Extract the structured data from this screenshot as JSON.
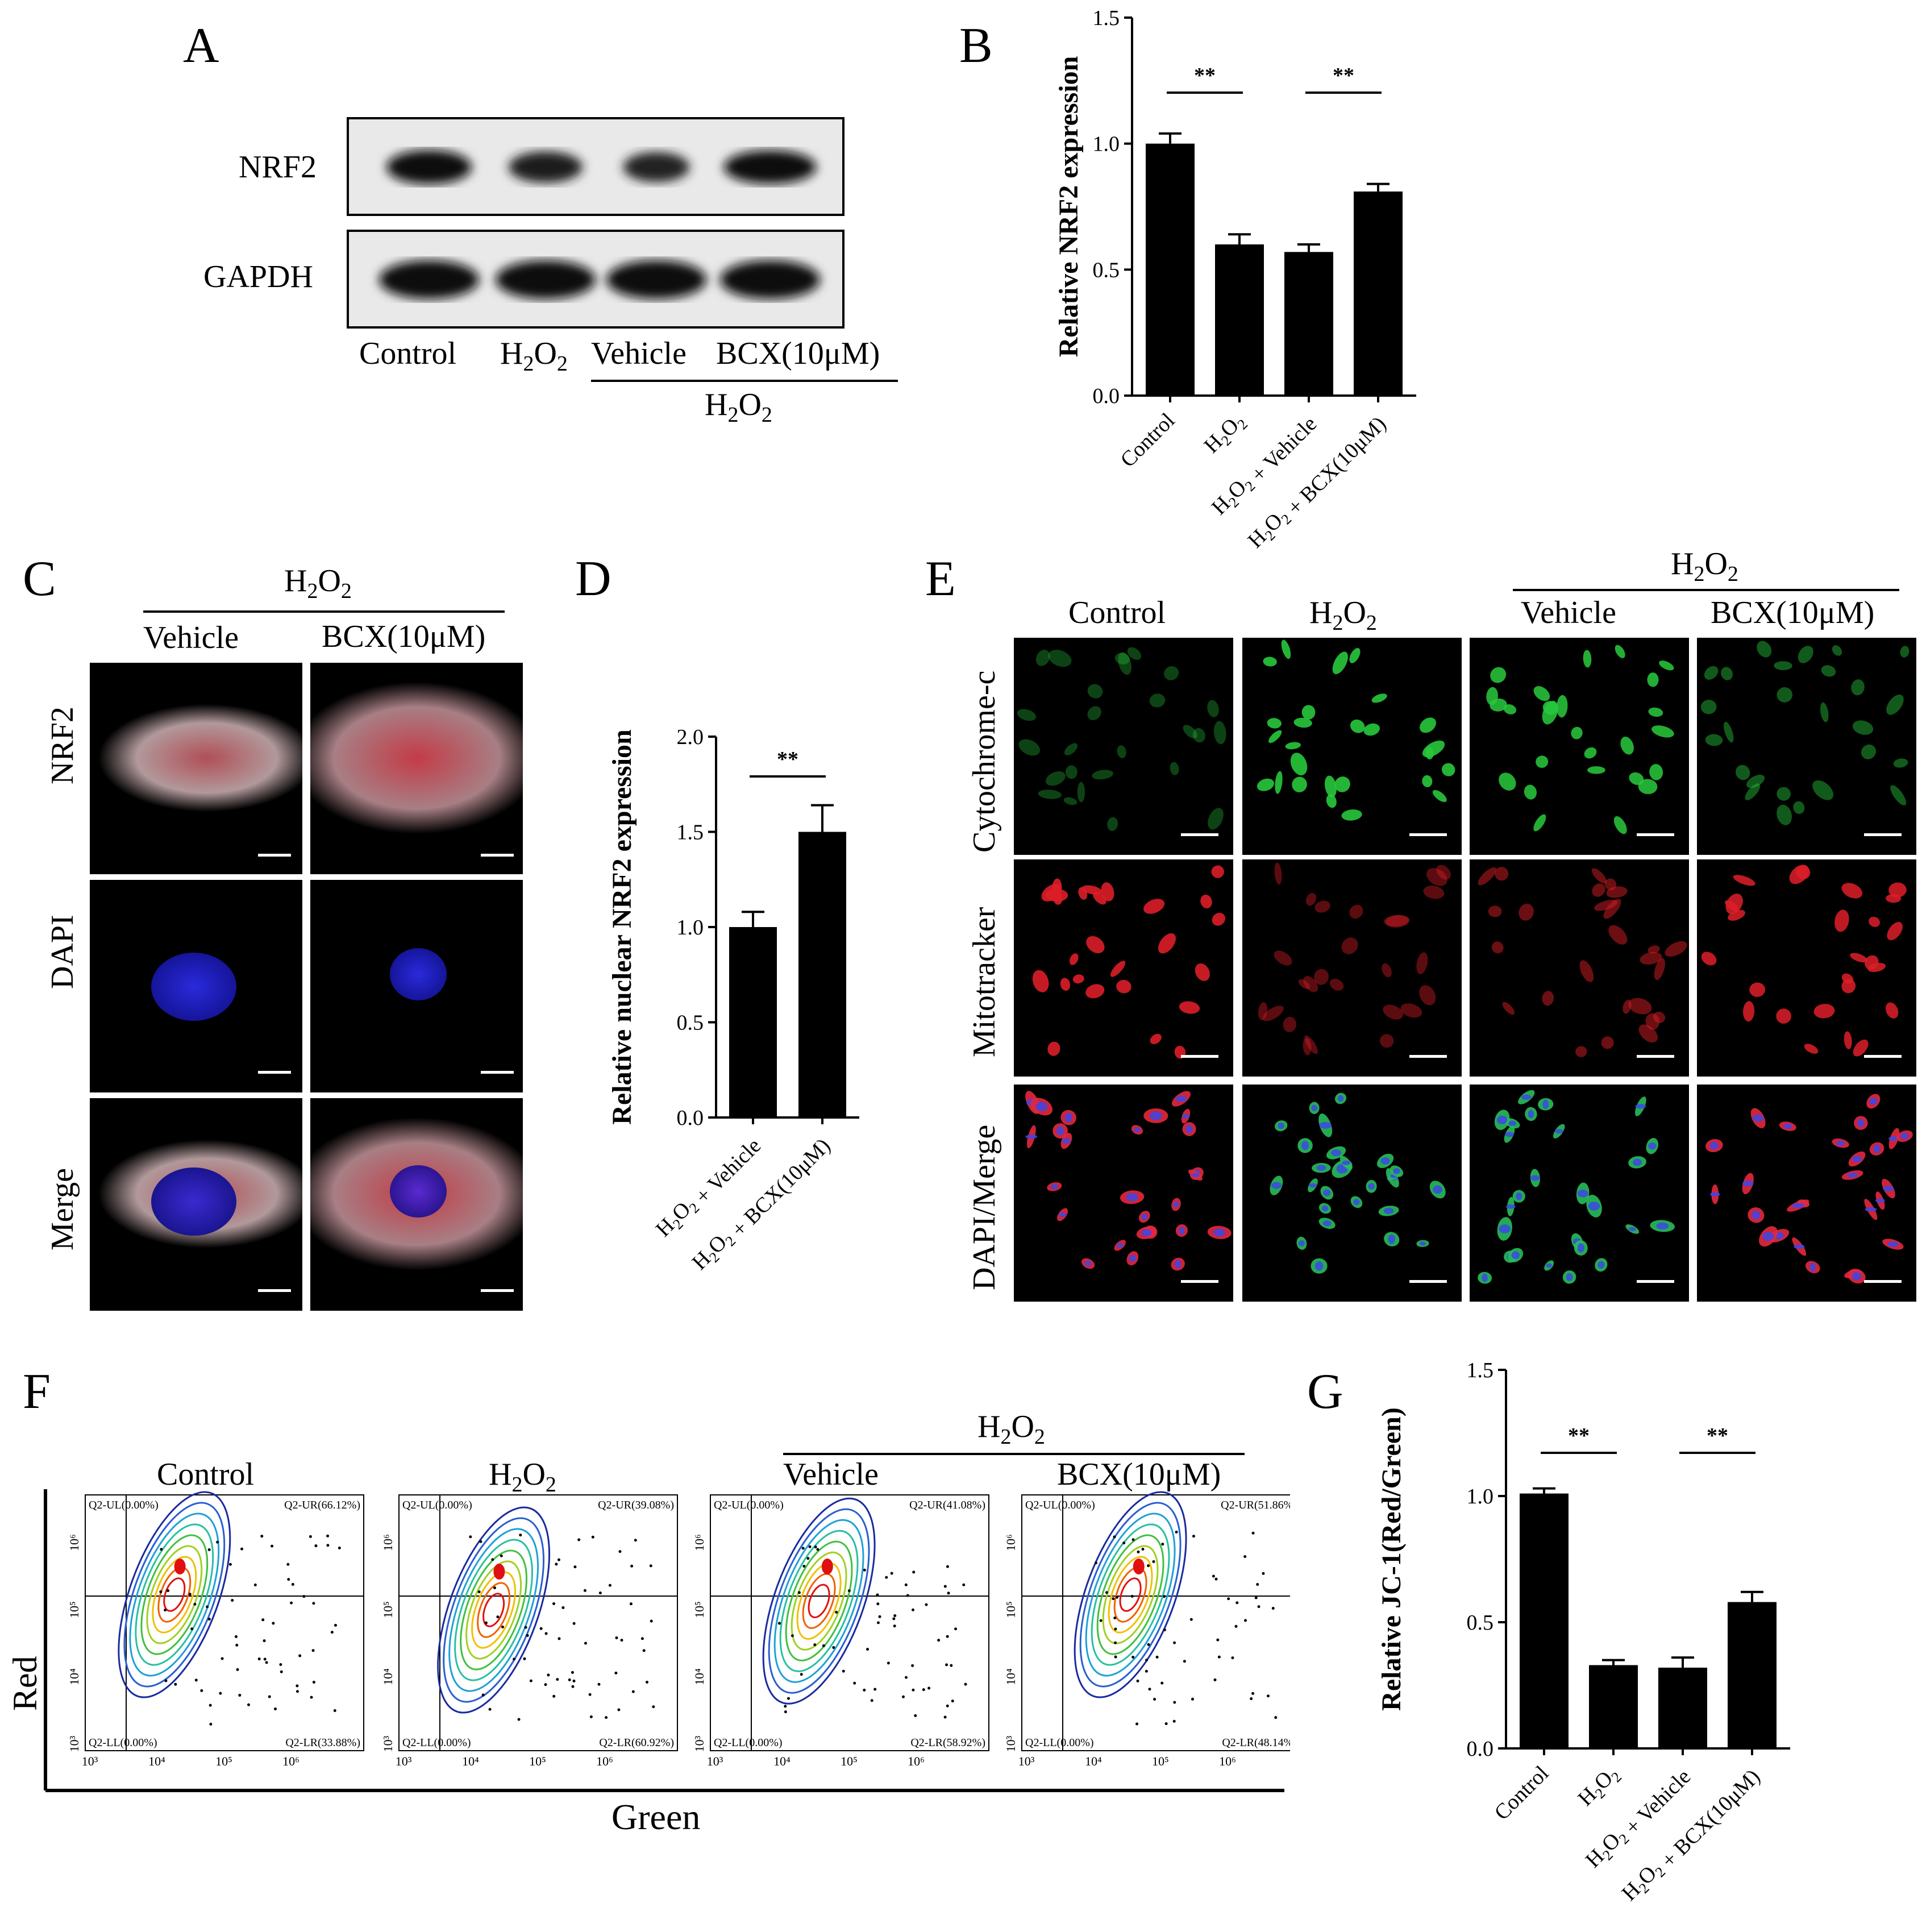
{
  "panel_letters": {
    "a": "A",
    "b": "B",
    "c": "C",
    "d": "D",
    "e": "E",
    "f": "F",
    "g": "G"
  },
  "panel_a": {
    "rows": [
      "NRF2",
      "GAPDH"
    ],
    "lanes": [
      "Control",
      "H2O2",
      "Vehicle",
      "BCX(10μM)"
    ],
    "group_label": "H2O2",
    "nrf2_band_intensity": [
      1.0,
      0.72,
      0.6,
      0.95
    ],
    "gapdh_band_intensity": [
      1.0,
      1.0,
      1.0,
      1.0
    ]
  },
  "panel_c": {
    "group_label": "H2O2",
    "columns": [
      "Vehicle",
      "BCX(10μM)"
    ],
    "rows": [
      "NRF2",
      "DAPI",
      "Merge"
    ]
  },
  "panel_e": {
    "group_label": "H2O2",
    "columns": [
      "Control",
      "H2O2",
      "Vehicle",
      "BCX(10μM)"
    ],
    "rows": [
      "Cytochrome-c",
      "Mitotracker",
      "DAPI/Merge"
    ]
  },
  "panel_f": {
    "group_label": "H2O2",
    "columns": [
      "Control",
      "H2O2",
      "Vehicle",
      "BCX(10μM)"
    ],
    "ylabel": "Red",
    "xlabel": "Green",
    "axis_ticks": [
      "10³",
      "10⁴",
      "10⁵",
      "10⁶"
    ],
    "quadrants": [
      {
        "ul": "Q2-UL(0.00%)",
        "ur": "Q2-UR(66.12%)",
        "ll": "Q2-LL(0.00%)",
        "lr": "Q2-LR(33.88%)"
      },
      {
        "ul": "Q2-UL(0.00%)",
        "ur": "Q2-UR(39.08%)",
        "ll": "Q2-LL(0.00%)",
        "lr": "Q2-LR(60.92%)"
      },
      {
        "ul": "Q2-UL(0.00%)",
        "ur": "Q2-UR(41.08%)",
        "ll": "Q2-LL(0.00%)",
        "lr": "Q2-LR(58.92%)"
      },
      {
        "ul": "Q2-UL(0.00%)",
        "ur": "Q2-UR(51.86%)",
        "ll": "Q2-LL(0.00%)",
        "lr": "Q2-LR(48.14%)"
      }
    ]
  },
  "chart_data": [
    {
      "id": "B",
      "type": "bar",
      "categories": [
        "Control",
        "H2O2",
        "H2O2 + Vehicle",
        "H2O2 + BCX(10μM)"
      ],
      "values": [
        1.0,
        0.6,
        0.57,
        0.81
      ],
      "errors": [
        0.04,
        0.04,
        0.03,
        0.03
      ],
      "ylabel": "Relative NRF2 expression",
      "ylim": [
        0,
        1.5
      ],
      "yticks": [
        "0.0",
        "0.5",
        "1.0",
        "1.5"
      ],
      "significance": [
        {
          "from": 0,
          "to": 1,
          "label": "**"
        },
        {
          "from": 2,
          "to": 3,
          "label": "**"
        }
      ]
    },
    {
      "id": "D",
      "type": "bar",
      "categories": [
        "H2O2 + Vehicle",
        "H2O2 + BCX(10μM)"
      ],
      "values": [
        1.0,
        1.5
      ],
      "errors": [
        0.08,
        0.14
      ],
      "ylabel": "Relative nuclear NRF2 expression",
      "ylim": [
        0,
        2.0
      ],
      "yticks": [
        "0.0",
        "0.5",
        "1.0",
        "1.5",
        "2.0"
      ],
      "significance": [
        {
          "from": 0,
          "to": 1,
          "label": "**"
        }
      ]
    },
    {
      "id": "G",
      "type": "bar",
      "categories": [
        "Control",
        "H2O2",
        "H2O2 + Vehicle",
        "H2O2 + BCX(10μM)"
      ],
      "values": [
        1.01,
        0.33,
        0.32,
        0.58
      ],
      "errors": [
        0.02,
        0.02,
        0.04,
        0.04
      ],
      "ylabel": "Relative JC-1(Red/Green)",
      "ylim": [
        0,
        1.5
      ],
      "yticks": [
        "0.0",
        "0.5",
        "1.0",
        "1.5"
      ],
      "significance": [
        {
          "from": 0,
          "to": 1,
          "label": "**"
        },
        {
          "from": 2,
          "to": 3,
          "label": "**"
        }
      ]
    }
  ]
}
